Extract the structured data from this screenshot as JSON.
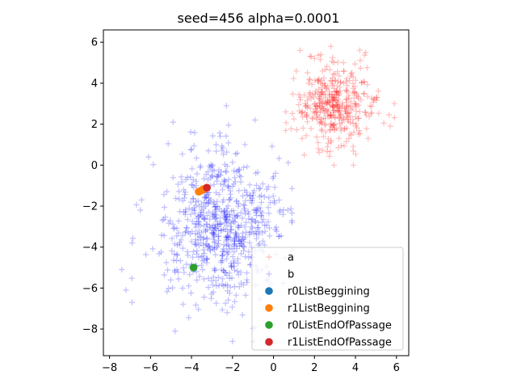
{
  "chart_data": {
    "type": "scatter",
    "title": "seed=456 alpha=0.0001",
    "xlabel": "",
    "ylabel": "",
    "xlim": [
      -8.3,
      6.6
    ],
    "ylim": [
      -9.3,
      6.6
    ],
    "xticks": [
      -8,
      -6,
      -4,
      -2,
      0,
      2,
      4,
      6
    ],
    "xtick_labels": [
      "−8",
      "−6",
      "−4",
      "−2",
      "0",
      "2",
      "4",
      "6"
    ],
    "yticks": [
      -8,
      -6,
      -4,
      -2,
      0,
      2,
      4,
      6
    ],
    "ytick_labels": [
      "−8",
      "−6",
      "−4",
      "−2",
      "0",
      "2",
      "4",
      "6"
    ],
    "grid": false,
    "legend_position": "bottom-right",
    "series": [
      {
        "name": "a",
        "marker": "plus",
        "color": "#ff0000",
        "alpha": 0.25,
        "point_count": 400,
        "center": [
          3.0,
          3.0
        ],
        "spread": [
          1.0,
          1.0
        ],
        "extent": {
          "x": [
            0.6,
            5.9
          ],
          "y": [
            0.0,
            5.8
          ]
        },
        "sample_points": [
          {
            "x": 2.8,
            "y": 5.8
          },
          {
            "x": 1.3,
            "y": 5.6
          },
          {
            "x": 4.5,
            "y": 5.5
          },
          {
            "x": 5.9,
            "y": 3.0
          },
          {
            "x": 5.7,
            "y": 1.9
          },
          {
            "x": 3.9,
            "y": 0.0
          },
          {
            "x": 1.5,
            "y": 0.5
          },
          {
            "x": 0.6,
            "y": 2.6
          },
          {
            "x": 1.4,
            "y": 1.3
          }
        ]
      },
      {
        "name": "b",
        "marker": "plus",
        "color": "#0000ff",
        "alpha": 0.25,
        "point_count": 700,
        "center": [
          -2.6,
          -3.0
        ],
        "spread": [
          1.4,
          1.75
        ],
        "extent": {
          "x": [
            -7.4,
            0.9
          ],
          "y": [
            -8.6,
            2.9
          ]
        },
        "sample_points": [
          {
            "x": -7.4,
            "y": -5.1
          },
          {
            "x": -7.2,
            "y": -6.1
          },
          {
            "x": -6.9,
            "y": -3.8
          },
          {
            "x": -6.9,
            "y": -6.7
          },
          {
            "x": -6.1,
            "y": 0.4
          },
          {
            "x": -4.9,
            "y": 2.1
          },
          {
            "x": -2.3,
            "y": 2.9
          },
          {
            "x": -0.9,
            "y": 2.2
          },
          {
            "x": 0.1,
            "y": -0.4
          },
          {
            "x": 0.7,
            "y": -2.2
          },
          {
            "x": 0.9,
            "y": -2.8
          },
          {
            "x": -2.0,
            "y": -8.6
          },
          {
            "x": -4.8,
            "y": -8.1
          },
          {
            "x": -6.5,
            "y": -2.2
          }
        ]
      },
      {
        "name": "r0ListBeggining",
        "marker": "circle",
        "color": "#1f77b4",
        "points": [
          {
            "x": -3.45,
            "y": -1.2
          }
        ]
      },
      {
        "name": "r1ListBeggining",
        "marker": "circle",
        "color": "#ff7f0e",
        "points": [
          {
            "x": -3.65,
            "y": -1.3
          },
          {
            "x": -3.55,
            "y": -1.25
          },
          {
            "x": -3.45,
            "y": -1.2
          },
          {
            "x": -3.35,
            "y": -1.15
          }
        ]
      },
      {
        "name": "r0ListEndOfPassage",
        "marker": "circle",
        "color": "#2ca02c",
        "points": [
          {
            "x": -3.9,
            "y": -5.0
          }
        ]
      },
      {
        "name": "r1ListEndOfPassage",
        "marker": "circle",
        "color": "#d62728",
        "points": [
          {
            "x": -3.25,
            "y": -1.1
          }
        ]
      }
    ]
  }
}
